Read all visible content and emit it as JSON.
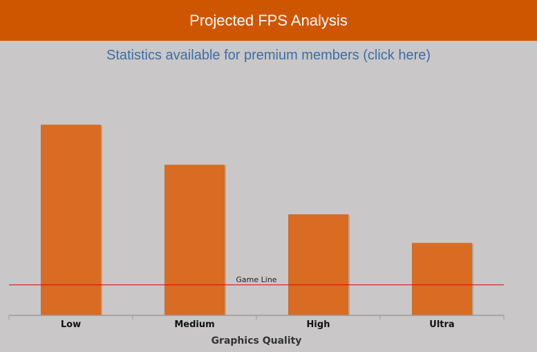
{
  "header": {
    "title": "Projected FPS Analysis"
  },
  "premium_link": {
    "label": "Statistics available for premium members (click here)"
  },
  "chart_data": {
    "type": "bar",
    "title": "",
    "xlabel": "Graphics Quality",
    "ylabel": "",
    "categories": [
      "Low",
      "Medium",
      "High",
      "Ultra"
    ],
    "values": [
      100,
      79,
      53,
      38
    ],
    "ylim": [
      0,
      115
    ],
    "reference_line": {
      "label": "Game Line",
      "value": 16,
      "color": "#dd0000"
    },
    "bar_color": "#d96b22",
    "grid": false,
    "legend": "none"
  }
}
